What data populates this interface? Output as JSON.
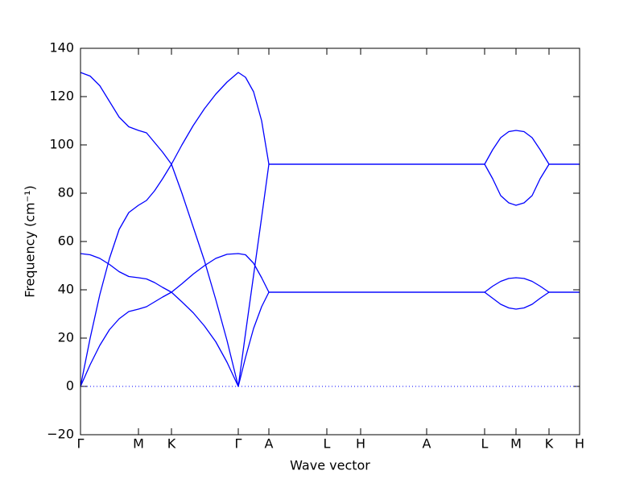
{
  "chart_data": {
    "type": "line",
    "xlabel": "Wave vector",
    "ylabel": "Frequency (cm⁻¹)",
    "x": [
      0,
      12,
      24,
      36,
      48,
      60,
      72,
      82,
      92,
      102,
      113,
      126,
      140,
      154,
      168,
      182,
      196,
      205,
      215,
      225,
      234,
      306,
      348,
      430,
      502,
      512,
      522,
      532,
      541,
      551,
      561,
      571,
      582,
      620
    ],
    "series": [
      {
        "color": "#0000ff",
        "values": [
          130,
          128.5,
          124.5,
          118,
          111.5,
          107.5,
          106,
          105,
          101,
          97,
          92,
          100,
          108,
          115,
          121,
          126,
          130,
          128,
          122,
          110,
          92,
          92,
          92,
          92,
          92,
          98,
          103,
          105.5,
          106,
          105.5,
          103,
          98,
          92,
          92
        ]
      },
      {
        "color": "#0000ff",
        "values": [
          0,
          20,
          38,
          53,
          65,
          72,
          75,
          77,
          81,
          86,
          92,
          80,
          66,
          52,
          36,
          19,
          0,
          22,
          46,
          70,
          92,
          92,
          92,
          92,
          92,
          86,
          79,
          76,
          75,
          76,
          79,
          86,
          92,
          92
        ]
      },
      {
        "color": "#0000ff",
        "values": [
          55,
          54.5,
          53,
          50.5,
          47.5,
          45.5,
          45,
          44.5,
          43,
          41,
          39,
          42.5,
          46.5,
          50,
          53,
          54.7,
          55,
          54.5,
          51,
          45,
          39,
          39,
          39,
          39,
          39,
          41.5,
          43.5,
          44.7,
          45,
          44.7,
          43.5,
          41.5,
          39,
          39
        ]
      },
      {
        "color": "#0000ff",
        "values": [
          0,
          9,
          17,
          23.5,
          28,
          31,
          32,
          33,
          35,
          37,
          39,
          35,
          30.5,
          25,
          18.5,
          10,
          0,
          12,
          24,
          33,
          39,
          39,
          39,
          39,
          39,
          36.5,
          34,
          32.5,
          32,
          32.5,
          34,
          36.5,
          39,
          39
        ]
      }
    ],
    "xlim": [
      0,
      620
    ],
    "xticks": [
      {
        "value": 0,
        "label": "Γ"
      },
      {
        "value": 72,
        "label": "M"
      },
      {
        "value": 113,
        "label": "K"
      },
      {
        "value": 196,
        "label": "Γ"
      },
      {
        "value": 234,
        "label": "A"
      },
      {
        "value": 306,
        "label": "L"
      },
      {
        "value": 348,
        "label": "H"
      },
      {
        "value": 430,
        "label": "A"
      },
      {
        "value": 502,
        "label": "L"
      },
      {
        "value": 541,
        "label": "M"
      },
      {
        "value": 582,
        "label": "K"
      },
      {
        "value": 620,
        "label": "H"
      }
    ],
    "ylim": [
      -20,
      140
    ],
    "yticks": [
      {
        "value": -20,
        "label": "−20"
      },
      0,
      20,
      40,
      60,
      80,
      100,
      120,
      140
    ],
    "zero_line": true,
    "grid": false
  }
}
